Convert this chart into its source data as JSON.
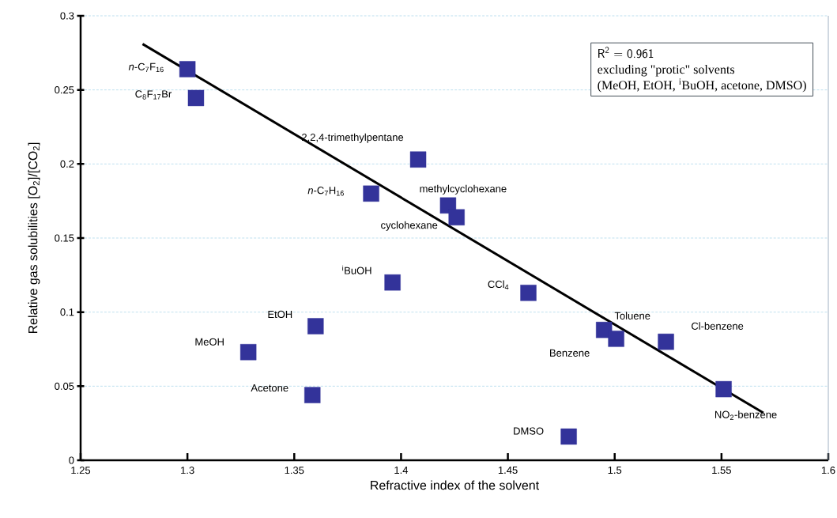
{
  "chart_data": {
    "type": "scatter",
    "xlabel": "Refractive index of the solvent",
    "ylabel": "Relative gas solubilities [O$_{2}$]/[CO$_{2}$]",
    "x": [
      1.3,
      1.304,
      1.408,
      1.386,
      1.422,
      1.426,
      1.396,
      1.36,
      1.3285,
      1.3585,
      1.4596,
      1.495,
      1.5007,
      1.524,
      1.551,
      1.4785
    ],
    "series": [
      {
        "type": "scatter",
        "color": "#33339a",
        "marker": "square",
        "values": [
          0.264,
          0.2445,
          0.203,
          0.18,
          0.172,
          0.164,
          0.12,
          0.0905,
          0.073,
          0.044,
          0.113,
          0.088,
          0.082,
          0.08,
          0.048,
          0.016
        ]
      },
      {
        "type": "line",
        "color": "#000000",
        "marker": "none",
        "x": [
          1.279,
          1.5696
        ],
        "values": [
          0.281,
          0.032
        ]
      }
    ],
    "xlim": [
      1.25,
      1.6
    ],
    "ylim": [
      0,
      0.3
    ],
    "xticks": [
      1.25,
      1.3,
      1.35,
      1.4,
      1.45,
      1.5,
      1.55,
      1.6
    ],
    "yticks": [
      0,
      0.05,
      0.1,
      0.15,
      0.2,
      0.25,
      0.3
    ],
    "grid": "y",
    "annotations": [
      "R$^{2}$ = 0.961",
      "excluding \"protic\" solvents",
      "(MeOH, EtOH, $^{i}$BuOH, acetone, DMSO)",
      {
        "text": "*n*-C$_{7}$F$_{16}$",
        "x": 1.3,
        "y": 0.264
      },
      {
        "text": "C$_{8}$F$_{17}$Br",
        "x": 1.304,
        "y": 0.2445
      },
      {
        "text": "2,2,4-trimethylpentane",
        "x": 1.408,
        "y": 0.203
      },
      {
        "text": "*n*-C$_{7}$H$_{16}$",
        "x": 1.386,
        "y": 0.18
      },
      {
        "text": "methylcyclohexane",
        "x": 1.422,
        "y": 0.172
      },
      {
        "text": "cyclohexane",
        "x": 1.426,
        "y": 0.164
      },
      {
        "text": "$^{i}$BuOH",
        "x": 1.396,
        "y": 0.12
      },
      {
        "text": "EtOH",
        "x": 1.36,
        "y": 0.0905
      },
      {
        "text": "MeOH",
        "x": 1.3285,
        "y": 0.073
      },
      {
        "text": "Acetone",
        "x": 1.3585,
        "y": 0.044
      },
      {
        "text": "CCl$_{4}$",
        "x": 1.4596,
        "y": 0.113
      },
      {
        "text": "Toluene",
        "x": 1.495,
        "y": 0.088
      },
      {
        "text": "Benzene",
        "x": 1.5007,
        "y": 0.082
      },
      {
        "text": "Cl-benzene",
        "x": 1.524,
        "y": 0.08
      },
      {
        "text": "NO$_{2}$-benzene",
        "x": 1.551,
        "y": 0.048
      },
      {
        "text": "DMSO",
        "x": 1.4785,
        "y": 0.016
      }
    ]
  }
}
